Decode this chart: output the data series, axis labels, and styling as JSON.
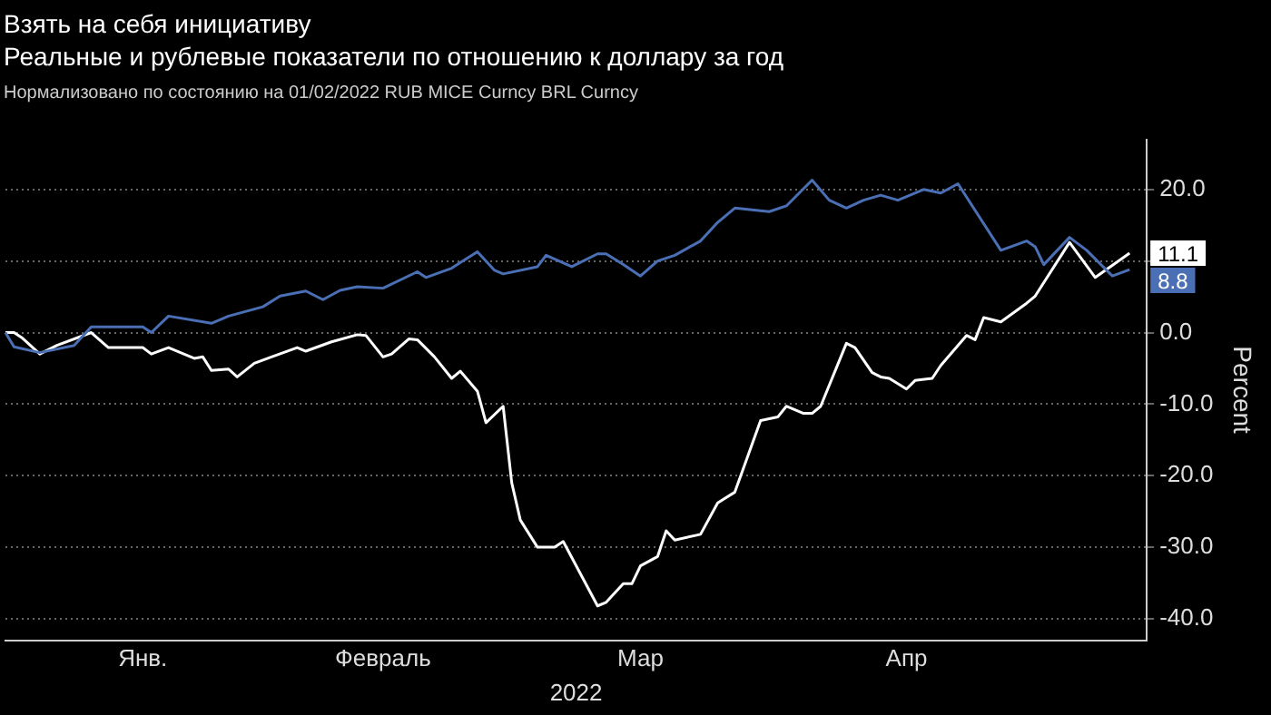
{
  "chart_data": {
    "type": "line",
    "title": "Взять на себя инициативу",
    "subtitle": "Реальные и рублевые показатели по отношению к доллару за год",
    "annotations": [
      "Нормализовано по состоянию на 01/02/2022 RUB MICE Curncy BRL Curncy"
    ],
    "xlabel": "2022",
    "ylabel": "Percent",
    "categories": [
      null,
      null,
      null,
      null,
      null,
      null,
      null,
      null,
      null,
      null,
      null,
      null,
      null,
      null,
      null,
      null,
      "Янв.",
      null,
      null,
      null,
      null,
      null,
      null,
      null,
      null,
      null,
      null,
      null,
      null,
      null,
      null,
      null,
      null,
      null,
      null,
      null,
      null,
      null,
      null,
      null,
      null,
      null,
      null,
      null,
      "Февраль",
      null,
      null,
      null,
      null,
      null,
      null,
      null,
      null,
      null,
      null,
      null,
      null,
      null,
      null,
      null,
      null,
      null,
      null,
      null,
      null,
      null,
      null,
      null,
      null,
      null,
      null,
      null,
      null,
      null,
      "Мар",
      null,
      null,
      null,
      null,
      null,
      null,
      null,
      null,
      null,
      null,
      null,
      null,
      null,
      null,
      null,
      null,
      null,
      null,
      null,
      null,
      null,
      null,
      null,
      null,
      null,
      null,
      null,
      null,
      null,
      null,
      "Апр",
      null,
      null,
      null,
      null,
      null,
      null,
      null,
      null,
      null,
      null,
      null,
      null,
      null,
      null,
      null,
      null,
      null,
      null,
      null,
      null,
      null,
      null,
      null,
      null,
      null,
      null,
      null,
      null
    ],
    "ylim": [
      -43,
      27
    ],
    "yticks": [
      {
        "value": -40,
        "label": "-40.0"
      },
      {
        "value": -30,
        "label": "-30.0"
      },
      {
        "value": -20,
        "label": "-20.0"
      },
      {
        "value": -10,
        "label": "-10.0"
      },
      {
        "value": 0,
        "label": "0.0"
      },
      {
        "value": 10,
        "label": null
      },
      {
        "value": 20,
        "label": "20.0"
      }
    ],
    "grid": "y",
    "line_style": "solid",
    "series": [
      {
        "color": "#4a6fb5",
        "values": [
          0,
          -2,
          null,
          null,
          -2.8,
          null,
          null,
          null,
          -1.8,
          null,
          0.8,
          null,
          null,
          null,
          null,
          null,
          0.8,
          0,
          null,
          2.3,
          null,
          null,
          null,
          null,
          1.3,
          null,
          2.3,
          null,
          null,
          null,
          3.6,
          null,
          5.1,
          null,
          null,
          5.8,
          null,
          4.6,
          null,
          5.9,
          null,
          6.4,
          null,
          null,
          6.2,
          null,
          null,
          null,
          8.5,
          7.7,
          null,
          null,
          9,
          null,
          null,
          11.3,
          null,
          8.7,
          8.2,
          null,
          null,
          null,
          9.2,
          10.8,
          null,
          null,
          9.2,
          null,
          null,
          11,
          11,
          null,
          9.5,
          null,
          7.9,
          null,
          10,
          null,
          10.8,
          null,
          null,
          12.8,
          null,
          15.4,
          null,
          17.4,
          null,
          null,
          null,
          16.9,
          null,
          17.7,
          null,
          null,
          21.3,
          null,
          18.5,
          null,
          17.4,
          null,
          18.5,
          null,
          19.2,
          null,
          18.5,
          null,
          null,
          20,
          null,
          19.5,
          null,
          20.8,
          null,
          null,
          null,
          null,
          11.5,
          null,
          null,
          12.8,
          12,
          9.5,
          null,
          null,
          13.3,
          null,
          11.5,
          null,
          null,
          7.9,
          null,
          8.8,
          null,
          null
        ],
        "value_labels": [
          null,
          null,
          null,
          null,
          null,
          null,
          null,
          null,
          null,
          null,
          null,
          null,
          null,
          null,
          null,
          null,
          null,
          null,
          null,
          null,
          null,
          null,
          null,
          null,
          null,
          null,
          null,
          null,
          null,
          null,
          null,
          null,
          null,
          null,
          null,
          null,
          null,
          null,
          null,
          null,
          null,
          null,
          null,
          null,
          null,
          null,
          null,
          null,
          null,
          null,
          null,
          null,
          null,
          null,
          null,
          null,
          null,
          null,
          null,
          null,
          null,
          null,
          null,
          null,
          null,
          null,
          null,
          null,
          null,
          null,
          null,
          null,
          null,
          null,
          null,
          null,
          null,
          null,
          null,
          null,
          null,
          null,
          null,
          null,
          null,
          null,
          null,
          null,
          null,
          null,
          null,
          null,
          null,
          null,
          null,
          null,
          null,
          null,
          null,
          null,
          null,
          null,
          null,
          null,
          null,
          null,
          null,
          null,
          null,
          null,
          null,
          null,
          null,
          null,
          null,
          null,
          null,
          null,
          null,
          null,
          null,
          null,
          null,
          null,
          null,
          null,
          null,
          null,
          null,
          null,
          null,
          "8.8",
          null,
          null
        ]
      },
      {
        "color": "#ffffff",
        "values": [
          0,
          0,
          -0.8,
          null,
          -3,
          null,
          -1.8,
          null,
          null,
          null,
          0,
          null,
          -2.1,
          null,
          null,
          null,
          -2.1,
          -3,
          null,
          -2.1,
          null,
          null,
          -3.6,
          -3.4,
          -5.3,
          null,
          -5.1,
          -6.2,
          null,
          -4.3,
          null,
          -3.4,
          null,
          null,
          -2.1,
          -2.6,
          null,
          null,
          -1.3,
          null,
          null,
          -0.3,
          -0.4,
          null,
          -3.4,
          -3,
          null,
          -0.9,
          -1,
          null,
          -3.4,
          null,
          -6.4,
          -5.4,
          null,
          -8.2,
          -12.6,
          null,
          -10.3,
          -21,
          -26.2,
          null,
          -30,
          null,
          -30,
          -29.2,
          null,
          null,
          null,
          -38.2,
          -37.7,
          null,
          -35.1,
          -35.1,
          -32.6,
          null,
          -31.3,
          -27.7,
          -29,
          null,
          null,
          -28.2,
          null,
          -23.8,
          null,
          -22.3,
          null,
          null,
          -12.3,
          null,
          -11.8,
          -10.3,
          null,
          -11.3,
          -11.3,
          -10.3,
          null,
          null,
          -1.5,
          -2.1,
          null,
          -5.6,
          -6.2,
          -6.4,
          null,
          -7.9,
          -6.7,
          null,
          -6.4,
          -4.6,
          null,
          null,
          -0.4,
          -1,
          2.1,
          null,
          1.5,
          null,
          null,
          4.1,
          5.1,
          null,
          null,
          null,
          12.6,
          null,
          null,
          7.7,
          null,
          null,
          null,
          11.1,
          null,
          null
        ],
        "value_labels": [
          null,
          null,
          null,
          null,
          null,
          null,
          null,
          null,
          null,
          null,
          null,
          null,
          null,
          null,
          null,
          null,
          null,
          null,
          null,
          null,
          null,
          null,
          null,
          null,
          null,
          null,
          null,
          null,
          null,
          null,
          null,
          null,
          null,
          null,
          null,
          null,
          null,
          null,
          null,
          null,
          null,
          null,
          null,
          null,
          null,
          null,
          null,
          null,
          null,
          null,
          null,
          null,
          null,
          null,
          null,
          null,
          null,
          null,
          null,
          null,
          null,
          null,
          null,
          null,
          null,
          null,
          null,
          null,
          null,
          null,
          null,
          null,
          null,
          null,
          null,
          null,
          null,
          null,
          null,
          null,
          null,
          null,
          null,
          null,
          null,
          null,
          null,
          null,
          null,
          null,
          null,
          null,
          null,
          null,
          null,
          null,
          null,
          null,
          null,
          null,
          null,
          null,
          null,
          null,
          null,
          null,
          null,
          null,
          null,
          null,
          null,
          null,
          null,
          null,
          null,
          null,
          null,
          null,
          null,
          null,
          null,
          null,
          null,
          null,
          null,
          null,
          null,
          null,
          null,
          null,
          null,
          "11.1",
          null,
          null
        ]
      }
    ]
  }
}
